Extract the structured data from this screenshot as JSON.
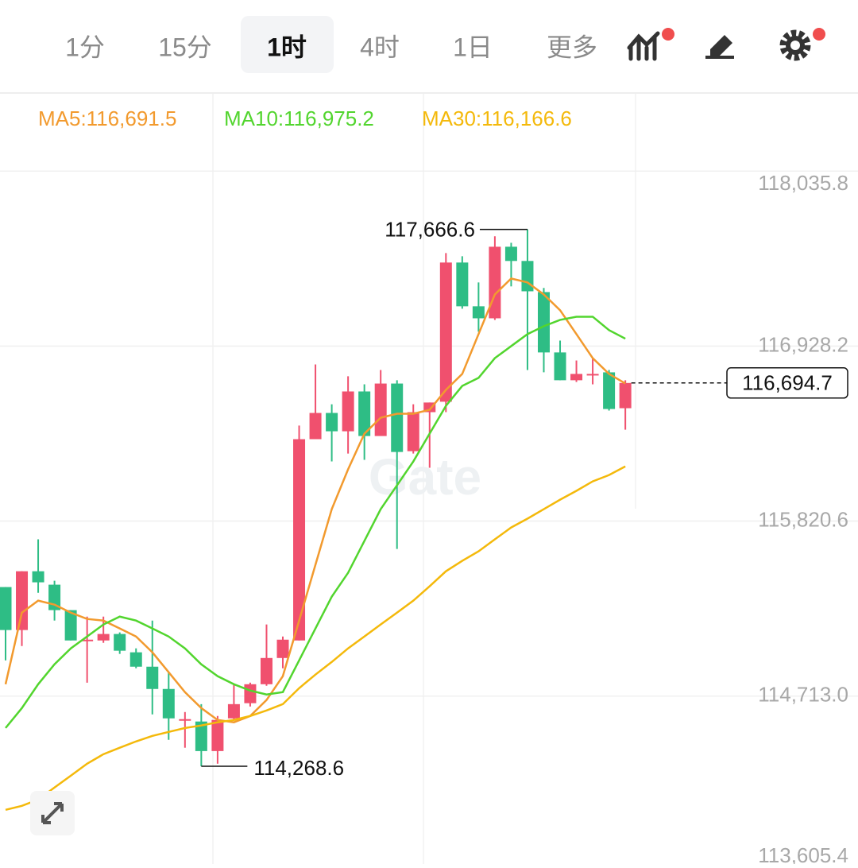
{
  "tabs": [
    "1分",
    "15分",
    "1时",
    "4时",
    "1日",
    "更多"
  ],
  "active_tab": "1时",
  "chart_data": {
    "type": "candlestick",
    "watermark": "Gate",
    "up_color": "#f0506e",
    "down_color": "#2ebd85",
    "open": [
      115403,
      115131,
      115503,
      115418,
      115257,
      115060,
      115065,
      115106,
      114990,
      114899,
      114758,
      114562,
      114552,
      114365,
      114572,
      114668,
      114788,
      114954,
      115065,
      116339,
      116505,
      116389,
      116641,
      116359,
      116691,
      116263,
      116510,
      116576,
      117457,
      117180,
      117104,
      117557,
      117467,
      117270,
      116888,
      116712,
      116752,
      116762,
      116535
    ],
    "high": [
      115403,
      115503,
      115705,
      115443,
      115257,
      115216,
      115216,
      115116,
      115015,
      115191,
      114864,
      114612,
      114662,
      114587,
      114788,
      114798,
      115166,
      115090,
      116425,
      116812,
      116560,
      116737,
      116686,
      116777,
      116712,
      116560,
      116571,
      117517,
      117497,
      117331,
      117623,
      117582,
      117666.6,
      117296,
      116963,
      116837,
      116852,
      116777,
      116712
    ],
    "low": [
      114939,
      115030,
      115367,
      115191,
      115065,
      114798,
      115050,
      114980,
      114889,
      114597,
      114436,
      114386,
      114268.6,
      114285,
      114562,
      114647,
      114778,
      114889,
      115065,
      116339,
      116198,
      116248,
      116208,
      116359,
      115644,
      116248,
      116158,
      116510,
      117165,
      117019,
      117094,
      117306,
      116777,
      116762,
      116712,
      116701,
      116686,
      116520,
      116399
    ],
    "close": [
      115131,
      115503,
      115433,
      115257,
      115065,
      115070,
      115106,
      115000,
      114899,
      114758,
      114572,
      114567,
      114365,
      114562,
      114662,
      114788,
      114954,
      115070,
      116339,
      116505,
      116389,
      116641,
      116359,
      116691,
      116258,
      116510,
      116571,
      117457,
      117180,
      117104,
      117557,
      117467,
      117275,
      116888,
      116712,
      116752,
      116752,
      116530,
      116694.7
    ],
    "series": [
      {
        "name": "MA5:116,691.5",
        "color": "#f29a2e",
        "values": [
          114788,
          115241,
          115317,
          115292,
          115241,
          115201,
          115191,
          115141,
          115090,
          114990,
          114864,
          114738,
          114637,
          114562,
          114547,
          114587,
          114688,
          114839,
          115191,
          115544,
          115896,
          116148,
          116374,
          116475,
          116500,
          116500,
          116525,
          116651,
          116752,
          117004,
          117255,
          117356,
          117331,
          117255,
          117155,
          117004,
          116852,
          116752,
          116691.5
        ]
      },
      {
        "name": "MA10:116,975.2",
        "color": "#52d52e",
        "values": [
          114511,
          114637,
          114788,
          114914,
          115015,
          115090,
          115166,
          115216,
          115191,
          115141,
          115090,
          115015,
          114914,
          114839,
          114788,
          114748,
          114723,
          114738,
          114939,
          115141,
          115342,
          115493,
          115695,
          115896,
          116047,
          116198,
          116374,
          116550,
          116676,
          116727,
          116852,
          116928,
          117004,
          117054,
          117094,
          117114,
          117114,
          117029,
          116975.2
        ]
      },
      {
        "name": "MA30:116,166.6",
        "color": "#f4b90b",
        "values": [
          113993,
          114018,
          114058,
          114134,
          114209,
          114285,
          114345,
          114386,
          114426,
          114461,
          114486,
          114511,
          114527,
          114547,
          114562,
          114587,
          114622,
          114662,
          114763,
          114849,
          114929,
          115015,
          115090,
          115166,
          115241,
          115317,
          115408,
          115503,
          115569,
          115629,
          115705,
          115780,
          115836,
          115896,
          115956,
          116012,
          116072,
          116112,
          116166.6
        ]
      }
    ],
    "high_label": "117,666.6",
    "low_label": "114,268.6",
    "last_label": "116,694.7",
    "ylim": [
      113650,
      118525
    ],
    "yticks": [
      {
        "value": 113605.4,
        "label": "113,605.4"
      },
      {
        "value": 114713.0,
        "label": "114,713.0"
      },
      {
        "value": 115820.6,
        "label": "115,820.6"
      },
      {
        "value": 116928.2,
        "label": "116,928.2"
      },
      {
        "value": 118035.8,
        "label": "118,035.8"
      }
    ],
    "grid": true
  }
}
